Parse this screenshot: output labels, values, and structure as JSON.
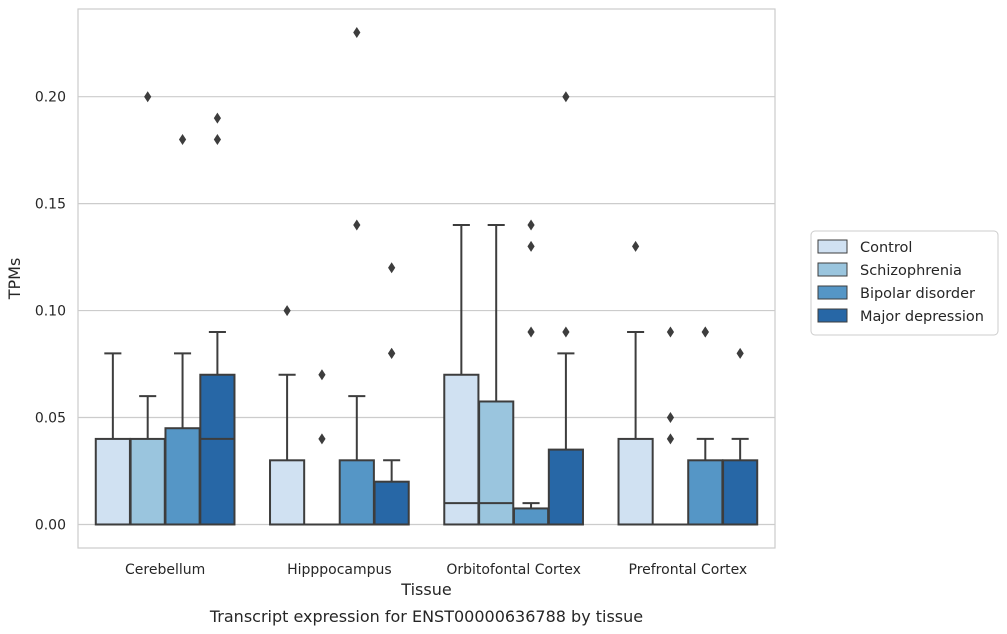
{
  "chart_data": {
    "type": "boxplot",
    "title": "",
    "caption": "Transcript expression for ENST00000636788 by tissue",
    "xlabel": "Tissue",
    "ylabel": "TPMs",
    "ylim": [
      -0.011,
      0.241
    ],
    "yticks": [
      0.0,
      0.05,
      0.1,
      0.15,
      0.2
    ],
    "ytick_labels": [
      "0.00",
      "0.05",
      "0.10",
      "0.15",
      "0.20"
    ],
    "grid": "horizontal",
    "legend_position": "right",
    "categories": [
      "Cerebellum",
      "Hipppocampus",
      "Orbitofontal Cortex",
      "Prefrontal Cortex"
    ],
    "series": [
      {
        "name": "Control",
        "color": "#d0e1f2",
        "boxes": [
          {
            "whislo": 0.0,
            "q1": 0.0,
            "med": 0.0,
            "q3": 0.04,
            "whishi": 0.08,
            "fliers": []
          },
          {
            "whislo": 0.0,
            "q1": 0.0,
            "med": 0.0,
            "q3": 0.03,
            "whishi": 0.07,
            "fliers": [
              0.1
            ]
          },
          {
            "whislo": 0.0,
            "q1": 0.0,
            "med": 0.01,
            "q3": 0.07,
            "whishi": 0.14,
            "fliers": []
          },
          {
            "whislo": 0.0,
            "q1": 0.0,
            "med": 0.0,
            "q3": 0.04,
            "whishi": 0.09,
            "fliers": [
              0.13
            ]
          }
        ]
      },
      {
        "name": "Schizophrenia",
        "color": "#9ac5de",
        "boxes": [
          {
            "whislo": 0.0,
            "q1": 0.0,
            "med": 0.0,
            "q3": 0.04,
            "whishi": 0.06,
            "fliers": [
              0.2
            ]
          },
          {
            "whislo": 0.0,
            "q1": 0.0,
            "med": 0.0,
            "q3": 0.0,
            "whishi": 0.0,
            "fliers": [
              0.04,
              0.07
            ]
          },
          {
            "whislo": 0.0,
            "q1": 0.0,
            "med": 0.01,
            "q3": 0.0575,
            "whishi": 0.14,
            "fliers": []
          },
          {
            "whislo": 0.0,
            "q1": 0.0,
            "med": 0.0,
            "q3": 0.0,
            "whishi": 0.0,
            "fliers": [
              0.04,
              0.05,
              0.09
            ]
          }
        ]
      },
      {
        "name": "Bipolar disorder",
        "color": "#5596c6",
        "boxes": [
          {
            "whislo": 0.0,
            "q1": 0.0,
            "med": 0.0,
            "q3": 0.045,
            "whishi": 0.08,
            "fliers": [
              0.18
            ]
          },
          {
            "whislo": 0.0,
            "q1": 0.0,
            "med": 0.0,
            "q3": 0.03,
            "whishi": 0.06,
            "fliers": [
              0.14,
              0.23
            ]
          },
          {
            "whislo": 0.0,
            "q1": 0.0,
            "med": 0.0,
            "q3": 0.0075,
            "whishi": 0.01,
            "fliers": [
              0.09,
              0.13,
              0.14
            ]
          },
          {
            "whislo": 0.0,
            "q1": 0.0,
            "med": 0.0,
            "q3": 0.03,
            "whishi": 0.04,
            "fliers": [
              0.09,
              0.09
            ]
          }
        ]
      },
      {
        "name": "Major depression",
        "color": "#2767a6",
        "boxes": [
          {
            "whislo": 0.0,
            "q1": 0.0,
            "med": 0.04,
            "q3": 0.07,
            "whishi": 0.09,
            "fliers": [
              0.18,
              0.19
            ]
          },
          {
            "whislo": 0.0,
            "q1": 0.0,
            "med": 0.0,
            "q3": 0.02,
            "whishi": 0.03,
            "fliers": [
              0.08,
              0.08,
              0.12
            ]
          },
          {
            "whislo": 0.0,
            "q1": 0.0,
            "med": 0.0,
            "q3": 0.035,
            "whishi": 0.08,
            "fliers": [
              0.09,
              0.2
            ]
          },
          {
            "whislo": 0.0,
            "q1": 0.0,
            "med": 0.0,
            "q3": 0.03,
            "whishi": 0.04,
            "fliers": [
              0.08
            ]
          }
        ]
      }
    ]
  }
}
